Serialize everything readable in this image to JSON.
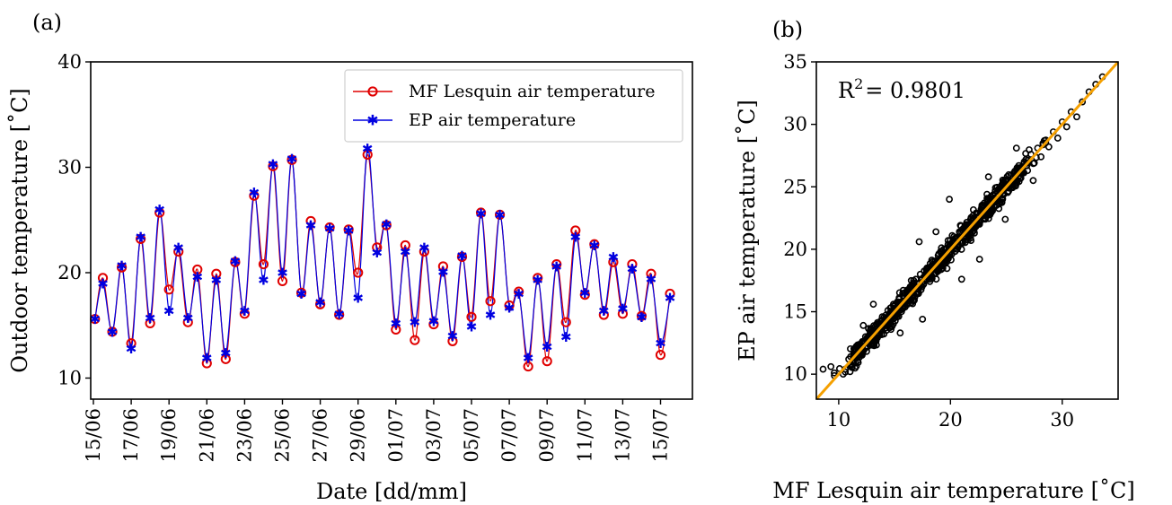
{
  "chart_data": [
    {
      "panel_label": "(a)",
      "type": "line",
      "xlabel": "Date [dd/mm]",
      "ylabel": "Outdoor temperature [˚C]",
      "ylim": [
        8,
        40
      ],
      "yticks": [
        10,
        20,
        30,
        40
      ],
      "x_range": [
        "15/06",
        "17/07"
      ],
      "xtick_labels": [
        "15/06",
        "17/06",
        "19/06",
        "21/06",
        "23/06",
        "25/06",
        "27/06",
        "29/06",
        "01/07",
        "03/07",
        "05/07",
        "07/07",
        "09/07",
        "11/07",
        "13/07",
        "15/07"
      ],
      "legend_position": "top-right",
      "series": [
        {
          "name": "MF Lesquin air temperature",
          "color": "#e00000",
          "marker": "open-circle",
          "marker_points": [
            {
              "x": "15/06 02:00",
              "y": 15.6
            },
            {
              "x": "15/06 12:00",
              "y": 19.5
            },
            {
              "x": "16/06 00:00",
              "y": 14.4
            },
            {
              "x": "16/06 12:00",
              "y": 20.5
            },
            {
              "x": "17/06 00:00",
              "y": 13.3
            },
            {
              "x": "17/06 12:00",
              "y": 23.2
            },
            {
              "x": "18/06 00:00",
              "y": 15.2
            },
            {
              "x": "18/06 12:00",
              "y": 25.7
            },
            {
              "x": "19/06 00:00",
              "y": 18.4
            },
            {
              "x": "19/06 12:00",
              "y": 22.0
            },
            {
              "x": "20/06 00:00",
              "y": 15.3
            },
            {
              "x": "20/06 12:00",
              "y": 20.3
            },
            {
              "x": "21/06 00:00",
              "y": 11.4
            },
            {
              "x": "21/06 12:00",
              "y": 19.9
            },
            {
              "x": "22/06 00:00",
              "y": 11.8
            },
            {
              "x": "22/06 12:00",
              "y": 21.0
            },
            {
              "x": "23/06 00:00",
              "y": 16.1
            },
            {
              "x": "23/06 12:00",
              "y": 27.3
            },
            {
              "x": "24/06 00:00",
              "y": 20.8
            },
            {
              "x": "24/06 12:00",
              "y": 30.1
            },
            {
              "x": "25/06 00:00",
              "y": 19.2
            },
            {
              "x": "25/06 12:00",
              "y": 30.7
            },
            {
              "x": "26/06 00:00",
              "y": 18.1
            },
            {
              "x": "26/06 12:00",
              "y": 24.9
            },
            {
              "x": "27/06 00:00",
              "y": 17.0
            },
            {
              "x": "27/06 12:00",
              "y": 24.3
            },
            {
              "x": "28/06 00:00",
              "y": 16.0
            },
            {
              "x": "28/06 12:00",
              "y": 24.1
            },
            {
              "x": "29/06 00:00",
              "y": 20.0
            },
            {
              "x": "29/06 12:00",
              "y": 31.2
            },
            {
              "x": "30/06 00:00",
              "y": 22.4
            },
            {
              "x": "30/06 12:00",
              "y": 24.5
            },
            {
              "x": "01/07 00:00",
              "y": 14.6
            },
            {
              "x": "01/07 12:00",
              "y": 22.6
            },
            {
              "x": "02/07 00:00",
              "y": 13.6
            },
            {
              "x": "02/07 12:00",
              "y": 22.0
            },
            {
              "x": "03/07 00:00",
              "y": 15.1
            },
            {
              "x": "03/07 12:00",
              "y": 20.6
            },
            {
              "x": "04/07 00:00",
              "y": 13.5
            },
            {
              "x": "04/07 12:00",
              "y": 21.5
            },
            {
              "x": "05/07 00:00",
              "y": 15.8
            },
            {
              "x": "05/07 12:00",
              "y": 25.7
            },
            {
              "x": "06/07 00:00",
              "y": 17.3
            },
            {
              "x": "06/07 12:00",
              "y": 25.5
            },
            {
              "x": "07/07 00:00",
              "y": 16.9
            },
            {
              "x": "07/07 12:00",
              "y": 18.2
            },
            {
              "x": "08/07 00:00",
              "y": 11.1
            },
            {
              "x": "08/07 12:00",
              "y": 19.5
            },
            {
              "x": "09/07 00:00",
              "y": 11.6
            },
            {
              "x": "09/07 12:00",
              "y": 20.8
            },
            {
              "x": "10/07 00:00",
              "y": 15.3
            },
            {
              "x": "10/07 12:00",
              "y": 24.0
            },
            {
              "x": "11/07 00:00",
              "y": 17.9
            },
            {
              "x": "11/07 12:00",
              "y": 22.7
            },
            {
              "x": "12/07 00:00",
              "y": 16.0
            },
            {
              "x": "12/07 12:00",
              "y": 21.0
            },
            {
              "x": "13/07 00:00",
              "y": 16.1
            },
            {
              "x": "13/07 12:00",
              "y": 20.8
            },
            {
              "x": "14/07 00:00",
              "y": 15.9
            },
            {
              "x": "14/07 12:00",
              "y": 19.9
            },
            {
              "x": "15/07 00:00",
              "y": 12.2
            },
            {
              "x": "15/07 12:00",
              "y": 18.0
            }
          ]
        },
        {
          "name": "EP air temperature",
          "color": "#0000e0",
          "marker": "star",
          "marker_points": [
            {
              "x": "15/06 02:00",
              "y": 15.6
            },
            {
              "x": "15/06 12:00",
              "y": 19.0
            },
            {
              "x": "16/06 00:00",
              "y": 14.4
            },
            {
              "x": "16/06 12:00",
              "y": 20.7
            },
            {
              "x": "17/06 00:00",
              "y": 12.8
            },
            {
              "x": "17/06 12:00",
              "y": 23.4
            },
            {
              "x": "18/06 00:00",
              "y": 15.7
            },
            {
              "x": "18/06 12:00",
              "y": 26.0
            },
            {
              "x": "19/06 00:00",
              "y": 16.4
            },
            {
              "x": "19/06 12:00",
              "y": 22.4
            },
            {
              "x": "20/06 00:00",
              "y": 15.7
            },
            {
              "x": "20/06 12:00",
              "y": 19.6
            },
            {
              "x": "21/06 00:00",
              "y": 11.9
            },
            {
              "x": "21/06 12:00",
              "y": 19.3
            },
            {
              "x": "22/06 00:00",
              "y": 12.4
            },
            {
              "x": "22/06 12:00",
              "y": 21.1
            },
            {
              "x": "23/06 00:00",
              "y": 16.4
            },
            {
              "x": "23/06 12:00",
              "y": 27.6
            },
            {
              "x": "24/06 00:00",
              "y": 19.3
            },
            {
              "x": "24/06 12:00",
              "y": 30.3
            },
            {
              "x": "25/06 00:00",
              "y": 20.0
            },
            {
              "x": "25/06 12:00",
              "y": 30.8
            },
            {
              "x": "26/06 00:00",
              "y": 18.0
            },
            {
              "x": "26/06 12:00",
              "y": 24.5
            },
            {
              "x": "27/06 00:00",
              "y": 17.2
            },
            {
              "x": "27/06 12:00",
              "y": 24.2
            },
            {
              "x": "28/06 00:00",
              "y": 16.1
            },
            {
              "x": "28/06 12:00",
              "y": 24.0
            },
            {
              "x": "29/06 00:00",
              "y": 17.6
            },
            {
              "x": "29/06 12:00",
              "y": 31.8
            },
            {
              "x": "30/06 00:00",
              "y": 21.9
            },
            {
              "x": "30/06 12:00",
              "y": 24.6
            },
            {
              "x": "01/07 00:00",
              "y": 15.2
            },
            {
              "x": "01/07 12:00",
              "y": 22.0
            },
            {
              "x": "02/07 00:00",
              "y": 15.3
            },
            {
              "x": "02/07 12:00",
              "y": 22.4
            },
            {
              "x": "03/07 00:00",
              "y": 15.4
            },
            {
              "x": "03/07 12:00",
              "y": 20.1
            },
            {
              "x": "04/07 00:00",
              "y": 14.0
            },
            {
              "x": "04/07 12:00",
              "y": 21.6
            },
            {
              "x": "05/07 00:00",
              "y": 14.9
            },
            {
              "x": "05/07 12:00",
              "y": 25.6
            },
            {
              "x": "06/07 00:00",
              "y": 16.0
            },
            {
              "x": "06/07 12:00",
              "y": 25.5
            },
            {
              "x": "07/07 00:00",
              "y": 16.7
            },
            {
              "x": "07/07 12:00",
              "y": 18.0
            },
            {
              "x": "08/07 00:00",
              "y": 11.9
            },
            {
              "x": "08/07 12:00",
              "y": 19.3
            },
            {
              "x": "09/07 00:00",
              "y": 13.0
            },
            {
              "x": "09/07 12:00",
              "y": 20.6
            },
            {
              "x": "10/07 00:00",
              "y": 13.9
            },
            {
              "x": "10/07 12:00",
              "y": 23.4
            },
            {
              "x": "11/07 00:00",
              "y": 18.1
            },
            {
              "x": "11/07 12:00",
              "y": 22.6
            },
            {
              "x": "12/07 00:00",
              "y": 16.4
            },
            {
              "x": "12/07 12:00",
              "y": 21.5
            },
            {
              "x": "13/07 00:00",
              "y": 16.6
            },
            {
              "x": "13/07 12:00",
              "y": 20.4
            },
            {
              "x": "14/07 00:00",
              "y": 15.8
            },
            {
              "x": "14/07 12:00",
              "y": 19.4
            },
            {
              "x": "15/07 00:00",
              "y": 13.3
            },
            {
              "x": "15/07 12:00",
              "y": 17.6
            }
          ]
        }
      ]
    },
    {
      "panel_label": "(b)",
      "type": "scatter",
      "xlabel": "MF Lesquin air temperature [˚C]",
      "ylabel": "EP air temperature [˚C]",
      "xlim": [
        8,
        35
      ],
      "ylim": [
        8,
        35
      ],
      "xticks": [
        10,
        20,
        30
      ],
      "yticks": [
        10,
        15,
        20,
        25,
        30,
        35
      ],
      "annotation": {
        "text": "R",
        "superscript": "2",
        "value": "= 0.9801"
      },
      "fit_line": {
        "color": "#f5a000",
        "x": [
          8,
          35
        ],
        "y": [
          8,
          35
        ]
      },
      "point_color": "#000000",
      "points": [
        {
          "x": 8.6,
          "y": 10.4
        },
        {
          "x": 9.3,
          "y": 10.6
        },
        {
          "x": 9.6,
          "y": 10.1
        },
        {
          "x": 10.4,
          "y": 10.0
        },
        {
          "x": 10.9,
          "y": 11.2
        },
        {
          "x": 11.2,
          "y": 10.6
        },
        {
          "x": 11.5,
          "y": 11.8
        },
        {
          "x": 11.8,
          "y": 12.3
        },
        {
          "x": 12.1,
          "y": 11.7
        },
        {
          "x": 12.4,
          "y": 13.0
        },
        {
          "x": 12.6,
          "y": 12.2
        },
        {
          "x": 12.9,
          "y": 13.6
        },
        {
          "x": 13.2,
          "y": 12.8
        },
        {
          "x": 13.4,
          "y": 14.0
        },
        {
          "x": 13.6,
          "y": 13.2
        },
        {
          "x": 13.9,
          "y": 14.6
        },
        {
          "x": 14.2,
          "y": 13.7
        },
        {
          "x": 14.4,
          "y": 15.1
        },
        {
          "x": 14.7,
          "y": 14.3
        },
        {
          "x": 14.9,
          "y": 15.6
        },
        {
          "x": 15.1,
          "y": 14.8
        },
        {
          "x": 15.4,
          "y": 16.0
        },
        {
          "x": 15.7,
          "y": 15.3
        },
        {
          "x": 15.9,
          "y": 16.5
        },
        {
          "x": 16.2,
          "y": 15.7
        },
        {
          "x": 16.4,
          "y": 17.0
        },
        {
          "x": 16.6,
          "y": 16.2
        },
        {
          "x": 16.9,
          "y": 17.6
        },
        {
          "x": 17.1,
          "y": 16.6
        },
        {
          "x": 17.3,
          "y": 18.0
        },
        {
          "x": 17.5,
          "y": 14.4
        },
        {
          "x": 17.6,
          "y": 17.2
        },
        {
          "x": 17.9,
          "y": 18.5
        },
        {
          "x": 18.1,
          "y": 17.6
        },
        {
          "x": 18.4,
          "y": 19.0
        },
        {
          "x": 18.6,
          "y": 18.1
        },
        {
          "x": 18.9,
          "y": 19.5
        },
        {
          "x": 19.1,
          "y": 18.6
        },
        {
          "x": 19.4,
          "y": 20.0
        },
        {
          "x": 19.6,
          "y": 19.1
        },
        {
          "x": 19.8,
          "y": 20.4
        },
        {
          "x": 20.1,
          "y": 19.6
        },
        {
          "x": 20.3,
          "y": 21.0
        },
        {
          "x": 20.6,
          "y": 20.0
        },
        {
          "x": 20.8,
          "y": 21.4
        },
        {
          "x": 21.1,
          "y": 20.5
        },
        {
          "x": 21.3,
          "y": 21.9
        },
        {
          "x": 21.6,
          "y": 21.0
        },
        {
          "x": 21.8,
          "y": 22.4
        },
        {
          "x": 22.1,
          "y": 21.5
        },
        {
          "x": 22.3,
          "y": 22.9
        },
        {
          "x": 22.6,
          "y": 22.0
        },
        {
          "x": 22.8,
          "y": 23.4
        },
        {
          "x": 23.1,
          "y": 22.5
        },
        {
          "x": 23.3,
          "y": 23.9
        },
        {
          "x": 23.6,
          "y": 23.0
        },
        {
          "x": 23.8,
          "y": 24.3
        },
        {
          "x": 24.1,
          "y": 23.5
        },
        {
          "x": 24.3,
          "y": 24.8
        },
        {
          "x": 24.6,
          "y": 24.0
        },
        {
          "x": 24.8,
          "y": 25.3
        },
        {
          "x": 25.1,
          "y": 24.6
        },
        {
          "x": 25.4,
          "y": 25.9
        },
        {
          "x": 25.7,
          "y": 25.1
        },
        {
          "x": 26.0,
          "y": 26.4
        },
        {
          "x": 26.3,
          "y": 25.7
        },
        {
          "x": 26.6,
          "y": 27.0
        },
        {
          "x": 26.9,
          "y": 26.3
        },
        {
          "x": 27.2,
          "y": 27.6
        },
        {
          "x": 27.5,
          "y": 26.9
        },
        {
          "x": 27.8,
          "y": 28.1
        },
        {
          "x": 28.1,
          "y": 27.4
        },
        {
          "x": 28.4,
          "y": 28.7
        },
        {
          "x": 28.8,
          "y": 28.2
        },
        {
          "x": 29.2,
          "y": 29.4
        },
        {
          "x": 29.6,
          "y": 28.9
        },
        {
          "x": 30.0,
          "y": 30.2
        },
        {
          "x": 30.4,
          "y": 29.8
        },
        {
          "x": 30.8,
          "y": 31.0
        },
        {
          "x": 31.3,
          "y": 30.6
        },
        {
          "x": 31.8,
          "y": 31.8
        },
        {
          "x": 32.4,
          "y": 32.6
        },
        {
          "x": 33.0,
          "y": 33.2
        },
        {
          "x": 33.6,
          "y": 33.8
        },
        {
          "x": 19.9,
          "y": 24.0
        },
        {
          "x": 17.2,
          "y": 20.6
        },
        {
          "x": 21.0,
          "y": 17.6
        },
        {
          "x": 22.6,
          "y": 19.2
        },
        {
          "x": 24.9,
          "y": 22.4
        },
        {
          "x": 13.1,
          "y": 15.6
        },
        {
          "x": 15.5,
          "y": 13.3
        },
        {
          "x": 27.4,
          "y": 25.5
        },
        {
          "x": 23.4,
          "y": 25.8
        },
        {
          "x": 18.7,
          "y": 21.4
        },
        {
          "x": 25.9,
          "y": 28.1
        },
        {
          "x": 12.2,
          "y": 13.9
        }
      ]
    }
  ]
}
